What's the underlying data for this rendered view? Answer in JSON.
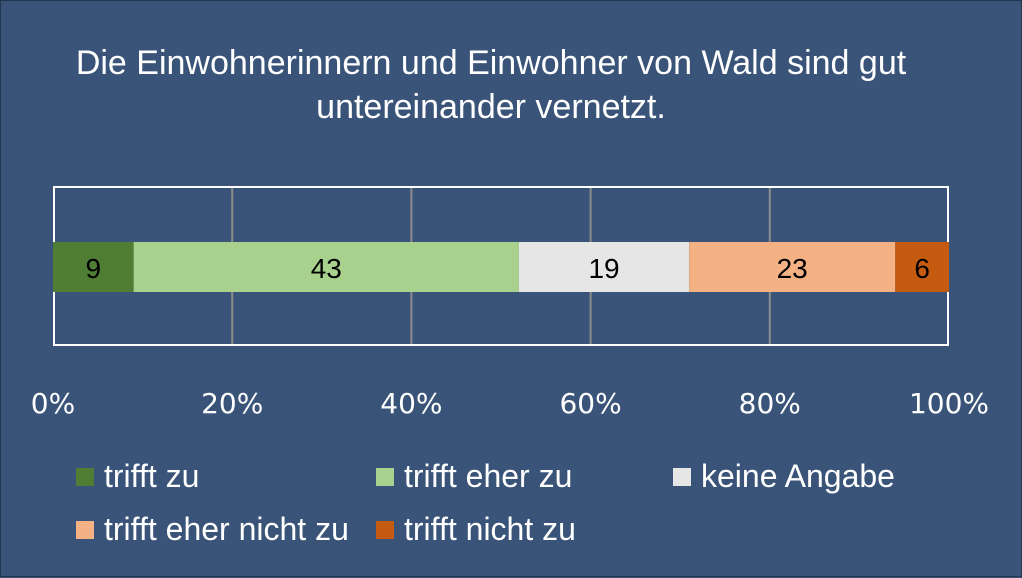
{
  "chart_data": {
    "type": "bar",
    "orientation": "horizontal-stacked-100",
    "title": "Die Einwohnerinnern und Einwohner von Wald sind gut untereinander vernetzt.",
    "xlim": [
      0,
      100
    ],
    "x_ticks": [
      "0%",
      "20%",
      "40%",
      "60%",
      "80%",
      "100%"
    ],
    "grid": true,
    "legend_placement": "bottom",
    "series": [
      {
        "name": "trifft zu",
        "value": 9,
        "label": "9",
        "color": "#4e7d33",
        "label_color": "#000000"
      },
      {
        "name": "trifft eher zu",
        "value": 43,
        "label": "43",
        "color": "#a9d18e",
        "label_color": "#000000"
      },
      {
        "name": "keine Angabe",
        "value": 19,
        "label": "19",
        "color": "#e7e6e6",
        "label_color": "#000000"
      },
      {
        "name": "trifft eher nicht zu",
        "value": 23,
        "label": "23",
        "color": "#f4b183",
        "label_color": "#000000"
      },
      {
        "name": "trifft nicht zu",
        "value": 6,
        "label": "6",
        "color": "#c55a11",
        "label_color": "#000000"
      }
    ]
  }
}
